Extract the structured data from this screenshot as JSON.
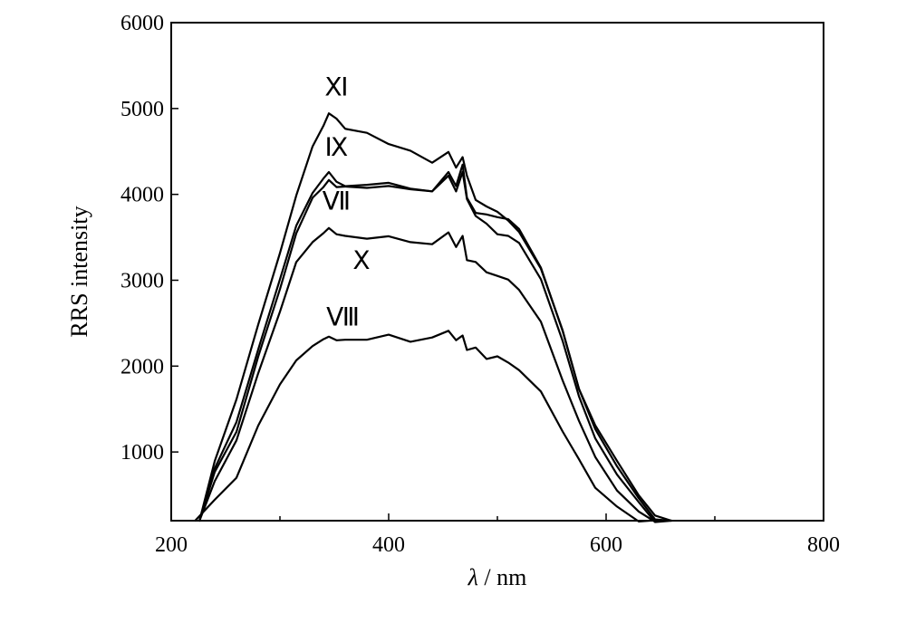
{
  "chart_data": {
    "type": "line",
    "title": "",
    "xlabel_symbol": "λ",
    "xlabel_sep": " / ",
    "xlabel_unit": "nm",
    "ylabel": "RRS intensity",
    "xlim": [
      200,
      800
    ],
    "ylim": [
      200,
      6000
    ],
    "xticks": [
      200,
      400,
      600,
      800
    ],
    "xminor_ticks": [
      300,
      500,
      700
    ],
    "yticks": [
      1000,
      2000,
      3000,
      4000,
      5000,
      6000
    ],
    "grid": false,
    "series": [
      {
        "name": "Ⅺ",
        "x": [
          226,
          240,
          260,
          280,
          300,
          315,
          330,
          340,
          345,
          352,
          360,
          380,
          400,
          420,
          440,
          455,
          462,
          468,
          472,
          480,
          490,
          500,
          510,
          520,
          540,
          560,
          575,
          590,
          610,
          630,
          645,
          660
        ],
        "y": [
          200,
          900,
          1600,
          2500,
          3300,
          4000,
          4550,
          4800,
          4950,
          4870,
          4780,
          4700,
          4600,
          4500,
          4370,
          4500,
          4300,
          4450,
          4200,
          3950,
          3850,
          3800,
          3700,
          3550,
          3150,
          2400,
          1750,
          1300,
          900,
          500,
          250,
          200
        ]
      },
      {
        "name": "Ⅸ",
        "x": [
          226,
          240,
          260,
          280,
          300,
          315,
          330,
          340,
          345,
          352,
          360,
          380,
          400,
          420,
          440,
          455,
          462,
          468,
          472,
          480,
          490,
          500,
          510,
          520,
          540,
          560,
          575,
          590,
          610,
          630,
          645,
          660
        ],
        "y": [
          200,
          800,
          1350,
          2200,
          3000,
          3650,
          4000,
          4200,
          4250,
          4150,
          4100,
          4100,
          4150,
          4050,
          4050,
          4250,
          4100,
          4350,
          3950,
          3800,
          3750,
          3750,
          3700,
          3600,
          3150,
          2400,
          1750,
          1250,
          850,
          450,
          220,
          200
        ]
      },
      {
        "name": "Ⅶ",
        "x": [
          226,
          240,
          260,
          280,
          300,
          315,
          330,
          340,
          345,
          352,
          360,
          380,
          400,
          420,
          440,
          455,
          462,
          468,
          472,
          480,
          490,
          500,
          510,
          520,
          540,
          560,
          575,
          590,
          610,
          630,
          645,
          660
        ],
        "y": [
          200,
          750,
          1250,
          2100,
          2900,
          3550,
          3950,
          4100,
          4150,
          4100,
          4080,
          4080,
          4100,
          4050,
          4050,
          4200,
          4050,
          4250,
          3950,
          3750,
          3650,
          3550,
          3500,
          3450,
          3000,
          2300,
          1650,
          1150,
          750,
          400,
          200,
          200
        ]
      },
      {
        "name": "Ⅹ",
        "x": [
          226,
          240,
          260,
          280,
          300,
          315,
          330,
          340,
          345,
          352,
          360,
          380,
          400,
          420,
          440,
          455,
          462,
          468,
          472,
          480,
          490,
          500,
          510,
          520,
          540,
          560,
          575,
          590,
          610,
          630,
          645,
          655
        ],
        "y": [
          200,
          650,
          1150,
          1900,
          2650,
          3200,
          3450,
          3550,
          3600,
          3550,
          3500,
          3500,
          3500,
          3450,
          3420,
          3550,
          3400,
          3500,
          3250,
          3200,
          3100,
          3050,
          3000,
          2900,
          2500,
          1850,
          1350,
          950,
          550,
          300,
          200,
          200
        ]
      },
      {
        "name": "Ⅷ",
        "x": [
          222,
          240,
          260,
          280,
          300,
          315,
          330,
          340,
          345,
          352,
          360,
          380,
          400,
          420,
          440,
          455,
          462,
          468,
          472,
          480,
          490,
          500,
          510,
          520,
          540,
          560,
          575,
          590,
          610,
          630,
          640
        ],
        "y": [
          200,
          450,
          700,
          1300,
          1800,
          2050,
          2250,
          2300,
          2350,
          2300,
          2300,
          2320,
          2350,
          2300,
          2320,
          2420,
          2300,
          2350,
          2200,
          2200,
          2100,
          2100,
          2050,
          1950,
          1700,
          1250,
          900,
          600,
          350,
          200,
          200
        ]
      }
    ],
    "annotations": [
      {
        "text": "Ⅺ",
        "x": 352,
        "y": 5150
      },
      {
        "text": "Ⅸ",
        "x": 352,
        "y": 4450
      },
      {
        "text": "Ⅶ",
        "x": 352,
        "y": 3820
      },
      {
        "text": "Ⅹ",
        "x": 375,
        "y": 3130
      },
      {
        "text": "Ⅷ",
        "x": 358,
        "y": 2470
      }
    ]
  }
}
